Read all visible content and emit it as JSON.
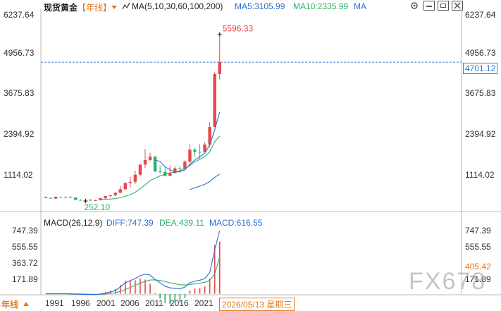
{
  "header": {
    "title": "现货黄金",
    "period": "【年线】",
    "ma_label": "MA(5,10,30,60,100,200)",
    "ma5": "MA5:3105.99",
    "ma10": "MA10:2335.99",
    "ma_more": "MA"
  },
  "price_axis": {
    "ticks": [
      "6237.64",
      "4956.73",
      "3675.83",
      "2394.92",
      "1114.02"
    ]
  },
  "annotations": {
    "high": "5596.33",
    "low": "252.10",
    "current": "4701.12"
  },
  "macd_panel": {
    "label": "MACD(26,12,9)",
    "diff": "DIFF:747.39",
    "dea": "DEA:439.11",
    "macd": "MACD:616.55",
    "ticks": [
      "747.39",
      "555.55",
      "363.72",
      "171.89"
    ],
    "current": "405.42"
  },
  "footer": {
    "period": "年线",
    "years": [
      "1991",
      "1996",
      "2001",
      "2006",
      "2011",
      "2016",
      "2021"
    ],
    "date": "2026/05/13 星期三"
  },
  "watermark": "FX678",
  "colors": {
    "up": "#e5474b",
    "down": "#2fae6a",
    "ma5": "#2b6fd6",
    "ma10": "#2fae6a",
    "ma30": "#2b6fd6",
    "label_up": "#e5474b",
    "label_down": "#2fae6a",
    "current_line": "#2a7fd4"
  },
  "chart_data": [
    {
      "type": "candlestick",
      "title": "现货黄金",
      "note": "annual candles, approximate",
      "candles": [
        {
          "year": 1991,
          "o": 386,
          "h": 403,
          "l": 344,
          "c": 353
        },
        {
          "year": 1992,
          "o": 353,
          "h": 360,
          "l": 330,
          "c": 333
        },
        {
          "year": 1993,
          "o": 333,
          "h": 406,
          "l": 326,
          "c": 391
        },
        {
          "year": 1994,
          "o": 391,
          "h": 397,
          "l": 370,
          "c": 383
        },
        {
          "year": 1995,
          "o": 383,
          "h": 396,
          "l": 372,
          "c": 387
        },
        {
          "year": 1996,
          "o": 387,
          "h": 415,
          "l": 367,
          "c": 369
        },
        {
          "year": 1997,
          "o": 369,
          "h": 367,
          "l": 283,
          "c": 290
        },
        {
          "year": 1998,
          "o": 290,
          "h": 313,
          "l": 273,
          "c": 288
        },
        {
          "year": 1999,
          "o": 288,
          "h": 326,
          "l": 252.1,
          "c": 290
        },
        {
          "year": 2000,
          "o": 290,
          "h": 316,
          "l": 264,
          "c": 273
        },
        {
          "year": 2001,
          "o": 273,
          "h": 293,
          "l": 255,
          "c": 278
        },
        {
          "year": 2002,
          "o": 278,
          "h": 349,
          "l": 277,
          "c": 347
        },
        {
          "year": 2003,
          "o": 347,
          "h": 417,
          "l": 320,
          "c": 416
        },
        {
          "year": 2004,
          "o": 416,
          "h": 456,
          "l": 375,
          "c": 438
        },
        {
          "year": 2005,
          "o": 438,
          "h": 537,
          "l": 411,
          "c": 517
        },
        {
          "year": 2006,
          "o": 517,
          "h": 730,
          "l": 524,
          "c": 632
        },
        {
          "year": 2007,
          "o": 632,
          "h": 841,
          "l": 608,
          "c": 834
        },
        {
          "year": 2008,
          "o": 834,
          "h": 1033,
          "l": 681,
          "c": 869
        },
        {
          "year": 2009,
          "o": 869,
          "h": 1226,
          "l": 802,
          "c": 1097
        },
        {
          "year": 2010,
          "o": 1097,
          "h": 1431,
          "l": 1044,
          "c": 1421
        },
        {
          "year": 2011,
          "o": 1421,
          "h": 1920,
          "l": 1308,
          "c": 1565
        },
        {
          "year": 2012,
          "o": 1565,
          "h": 1795,
          "l": 1527,
          "c": 1675
        },
        {
          "year": 2013,
          "o": 1675,
          "h": 1696,
          "l": 1180,
          "c": 1202
        },
        {
          "year": 2014,
          "o": 1202,
          "h": 1392,
          "l": 1131,
          "c": 1184
        },
        {
          "year": 2015,
          "o": 1184,
          "h": 1307,
          "l": 1046,
          "c": 1061
        },
        {
          "year": 2016,
          "o": 1061,
          "h": 1375,
          "l": 1046,
          "c": 1151
        },
        {
          "year": 2017,
          "o": 1151,
          "h": 1357,
          "l": 1146,
          "c": 1303
        },
        {
          "year": 2018,
          "o": 1303,
          "h": 1366,
          "l": 1160,
          "c": 1282
        },
        {
          "year": 2019,
          "o": 1282,
          "h": 1557,
          "l": 1266,
          "c": 1517
        },
        {
          "year": 2020,
          "o": 1517,
          "h": 2075,
          "l": 1451,
          "c": 1898
        },
        {
          "year": 2021,
          "o": 1898,
          "h": 1959,
          "l": 1677,
          "c": 1829
        },
        {
          "year": 2022,
          "o": 1829,
          "h": 2070,
          "l": 1615,
          "c": 1824
        },
        {
          "year": 2023,
          "o": 1824,
          "h": 2135,
          "l": 1804,
          "c": 2063
        },
        {
          "year": 2024,
          "o": 2063,
          "h": 2790,
          "l": 1984,
          "c": 2624
        },
        {
          "year": 2025,
          "o": 2624,
          "h": 4380,
          "l": 2615,
          "c": 4320
        },
        {
          "year": 2026,
          "o": 4320,
          "h": 5596.33,
          "l": 4150,
          "c": 4701.12
        }
      ],
      "ma5": [
        [
          2013,
          1560
        ],
        [
          2014,
          1525
        ],
        [
          2015,
          1345
        ],
        [
          2016,
          1260
        ],
        [
          2017,
          1180
        ],
        [
          2018,
          1200
        ],
        [
          2019,
          1248
        ],
        [
          2020,
          1430
        ],
        [
          2021,
          1566
        ],
        [
          2022,
          1670
        ],
        [
          2023,
          1790
        ],
        [
          2024,
          2048
        ],
        [
          2025,
          2532
        ],
        [
          2026,
          3105.99
        ]
      ],
      "ma10": [
        [
          2002,
          300
        ],
        [
          2003,
          312
        ],
        [
          2004,
          319
        ],
        [
          2005,
          333
        ],
        [
          2006,
          363
        ],
        [
          2007,
          409
        ],
        [
          2008,
          457
        ],
        [
          2009,
          536
        ],
        [
          2010,
          649
        ],
        [
          2011,
          775
        ],
        [
          2012,
          908
        ],
        [
          2013,
          986
        ],
        [
          2014,
          1061
        ],
        [
          2015,
          1110
        ],
        [
          2016,
          1150
        ],
        [
          2017,
          1183
        ],
        [
          2018,
          1228
        ],
        [
          2019,
          1290
        ],
        [
          2020,
          1390
        ],
        [
          2021,
          1516
        ],
        [
          2022,
          1588
        ],
        [
          2023,
          1680
        ],
        [
          2024,
          1825
        ],
        [
          2025,
          2150
        ],
        [
          2026,
          2335.99
        ]
      ],
      "ma30": [
        [
          2020,
          620
        ],
        [
          2021,
          680
        ],
        [
          2022,
          730
        ],
        [
          2023,
          790
        ],
        [
          2024,
          880
        ],
        [
          2025,
          1010
        ],
        [
          2026,
          1120
        ]
      ],
      "ylim": [
        0,
        6237.64
      ],
      "yticks": [
        6237.64,
        4956.73,
        3675.83,
        2394.92,
        1114.02
      ],
      "high_label": 5596.33,
      "low_label": 252.1,
      "current_price": 4701.12
    },
    {
      "type": "bar",
      "title": "MACD(26,12,9)",
      "note": "MACD histogram with DIFF and DEA lines, approximate",
      "diff": [
        [
          1991,
          0
        ],
        [
          1995,
          0
        ],
        [
          1999,
          -8
        ],
        [
          2001,
          -10
        ],
        [
          2002,
          -4
        ],
        [
          2003,
          8
        ],
        [
          2004,
          22
        ],
        [
          2005,
          40
        ],
        [
          2006,
          80
        ],
        [
          2007,
          130
        ],
        [
          2008,
          155
        ],
        [
          2009,
          180
        ],
        [
          2010,
          215
        ],
        [
          2011,
          232
        ],
        [
          2012,
          222
        ],
        [
          2013,
          170
        ],
        [
          2014,
          130
        ],
        [
          2015,
          90
        ],
        [
          2016,
          70
        ],
        [
          2017,
          65
        ],
        [
          2018,
          58
        ],
        [
          2019,
          80
        ],
        [
          2020,
          130
        ],
        [
          2021,
          150
        ],
        [
          2022,
          160
        ],
        [
          2023,
          180
        ],
        [
          2024,
          250
        ],
        [
          2025,
          520
        ],
        [
          2026,
          747.39
        ]
      ],
      "dea": [
        [
          1991,
          0
        ],
        [
          1995,
          0
        ],
        [
          1999,
          -3
        ],
        [
          2001,
          -6
        ],
        [
          2002,
          -6
        ],
        [
          2003,
          -2
        ],
        [
          2004,
          4
        ],
        [
          2005,
          12
        ],
        [
          2006,
          28
        ],
        [
          2007,
          52
        ],
        [
          2008,
          75
        ],
        [
          2009,
          100
        ],
        [
          2010,
          125
        ],
        [
          2011,
          148
        ],
        [
          2012,
          163
        ],
        [
          2013,
          165
        ],
        [
          2014,
          158
        ],
        [
          2015,
          145
        ],
        [
          2016,
          130
        ],
        [
          2017,
          118
        ],
        [
          2018,
          108
        ],
        [
          2019,
          104
        ],
        [
          2020,
          110
        ],
        [
          2021,
          118
        ],
        [
          2022,
          126
        ],
        [
          2023,
          136
        ],
        [
          2024,
          160
        ],
        [
          2025,
          232
        ],
        [
          2026,
          439.11
        ]
      ],
      "macd": [
        [
          2003,
          20
        ],
        [
          2004,
          36
        ],
        [
          2005,
          56
        ],
        [
          2006,
          104
        ],
        [
          2007,
          156
        ],
        [
          2008,
          160
        ],
        [
          2009,
          160
        ],
        [
          2010,
          180
        ],
        [
          2011,
          168
        ],
        [
          2012,
          118
        ],
        [
          2013,
          10
        ],
        [
          2014,
          -56
        ],
        [
          2015,
          -110
        ],
        [
          2016,
          -120
        ],
        [
          2017,
          -106
        ],
        [
          2018,
          -100
        ],
        [
          2019,
          -48
        ],
        [
          2020,
          40
        ],
        [
          2021,
          64
        ],
        [
          2022,
          68
        ],
        [
          2023,
          88
        ],
        [
          2024,
          180
        ],
        [
          2025,
          576
        ],
        [
          2026,
          616.55
        ]
      ],
      "yticks": [
        747.39,
        555.55,
        363.72,
        171.89
      ],
      "current": 405.42
    }
  ]
}
